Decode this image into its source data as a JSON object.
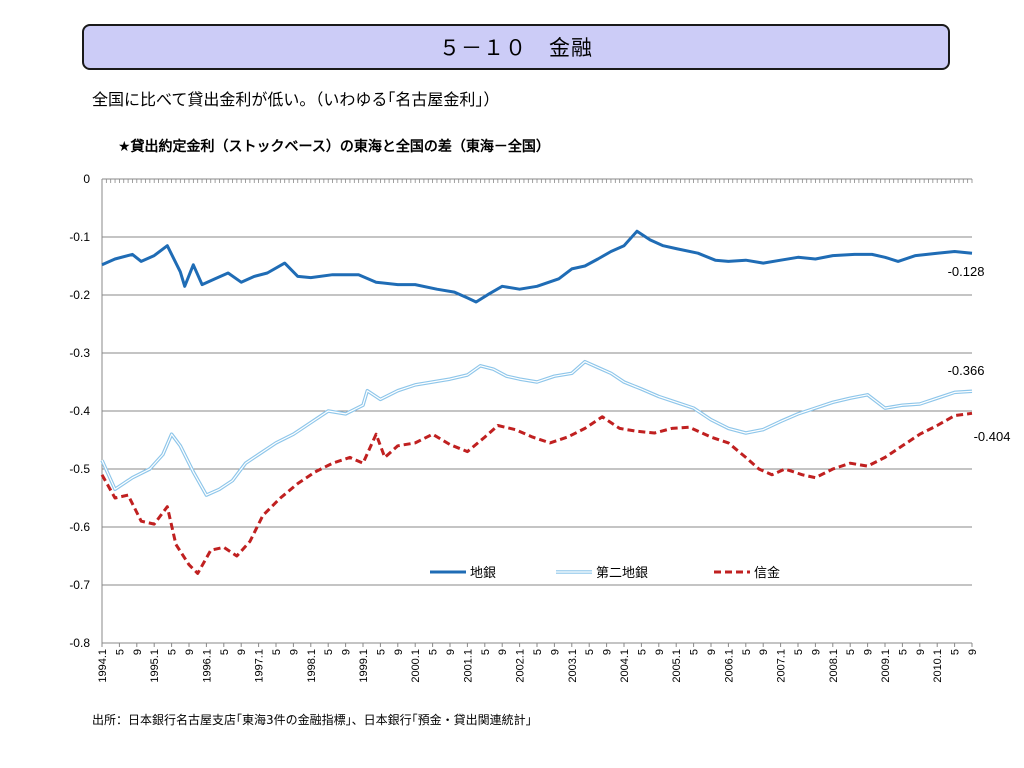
{
  "slide": {
    "title": "５－１０　金融",
    "subtitle": "全国に比べて貸出金利が低い。（いわゆる｢名古屋金利｣）",
    "chart_heading": "★貸出約定金利（ストックベース）の東海と全国の差（東海－全国）",
    "source": "出所：日本銀行名古屋支店｢東海3件の金融指標｣、日本銀行｢預金・貸出関連統計｣"
  },
  "chart_data": {
    "type": "line",
    "ylim": [
      -0.8,
      0
    ],
    "yticks": [
      0,
      -0.1,
      -0.2,
      -0.3,
      -0.4,
      -0.5,
      -0.6,
      -0.7,
      -0.8
    ],
    "ytick_labels": [
      "0",
      "-0.1",
      "-0.2",
      "-0.3",
      "-0.4",
      "-0.5",
      "-0.6",
      "-0.7",
      "-0.8"
    ],
    "xlim": [
      "1994-01",
      "2010-09"
    ],
    "xtick_labels": [
      "1994.1",
      "5",
      "9",
      "1995.1",
      "5",
      "9",
      "1996.1",
      "5",
      "9",
      "1997.1",
      "5",
      "9",
      "1998.1",
      "5",
      "9",
      "1999.1",
      "5",
      "9",
      "2000.1",
      "5",
      "9",
      "2001.1",
      "5",
      "9",
      "2002.1",
      "5",
      "9",
      "2003.1",
      "5",
      "9",
      "2004.1",
      "5",
      "9",
      "2005.1",
      "5",
      "9",
      "2006.1",
      "5",
      "9",
      "2007.1",
      "5",
      "9",
      "2008.1",
      "5",
      "9",
      "2009.1",
      "5",
      "9",
      "2010.1",
      "5",
      "9"
    ],
    "grid": true,
    "legend_position": "bottom-center",
    "series": [
      {
        "name": "地銀",
        "color": "#1f6cb5",
        "style": "solid",
        "points": [
          [
            "1994-01",
            -0.148
          ],
          [
            "1994-04",
            -0.138
          ],
          [
            "1994-08",
            -0.13
          ],
          [
            "1994-10",
            -0.142
          ],
          [
            "1995-01",
            -0.132
          ],
          [
            "1995-04",
            -0.115
          ],
          [
            "1995-07",
            -0.16
          ],
          [
            "1995-08",
            -0.185
          ],
          [
            "1995-10",
            -0.148
          ],
          [
            "1995-12",
            -0.182
          ],
          [
            "1996-03",
            -0.172
          ],
          [
            "1996-06",
            -0.162
          ],
          [
            "1996-09",
            -0.178
          ],
          [
            "1996-12",
            -0.168
          ],
          [
            "1997-03",
            -0.162
          ],
          [
            "1997-07",
            -0.145
          ],
          [
            "1997-10",
            -0.168
          ],
          [
            "1998-01",
            -0.17
          ],
          [
            "1998-06",
            -0.165
          ],
          [
            "1998-12",
            -0.165
          ],
          [
            "1999-04",
            -0.178
          ],
          [
            "1999-09",
            -0.182
          ],
          [
            "2000-01",
            -0.182
          ],
          [
            "2000-06",
            -0.19
          ],
          [
            "2000-10",
            -0.195
          ],
          [
            "2001-01",
            -0.205
          ],
          [
            "2001-03",
            -0.212
          ],
          [
            "2001-06",
            -0.198
          ],
          [
            "2001-09",
            -0.185
          ],
          [
            "2002-01",
            -0.19
          ],
          [
            "2002-05",
            -0.185
          ],
          [
            "2002-10",
            -0.172
          ],
          [
            "2003-01",
            -0.155
          ],
          [
            "2003-04",
            -0.15
          ],
          [
            "2003-07",
            -0.138
          ],
          [
            "2003-10",
            -0.125
          ],
          [
            "2004-01",
            -0.115
          ],
          [
            "2004-04",
            -0.09
          ],
          [
            "2004-07",
            -0.105
          ],
          [
            "2004-10",
            -0.115
          ],
          [
            "2005-01",
            -0.12
          ],
          [
            "2005-06",
            -0.128
          ],
          [
            "2005-10",
            -0.14
          ],
          [
            "2006-01",
            -0.142
          ],
          [
            "2006-05",
            -0.14
          ],
          [
            "2006-09",
            -0.145
          ],
          [
            "2007-01",
            -0.14
          ],
          [
            "2007-05",
            -0.135
          ],
          [
            "2007-09",
            -0.138
          ],
          [
            "2008-01",
            -0.132
          ],
          [
            "2008-06",
            -0.13
          ],
          [
            "2008-10",
            -0.13
          ],
          [
            "2009-01",
            -0.135
          ],
          [
            "2009-04",
            -0.142
          ],
          [
            "2009-08",
            -0.132
          ],
          [
            "2010-01",
            -0.128
          ],
          [
            "2010-05",
            -0.125
          ],
          [
            "2010-09",
            -0.128
          ]
        ],
        "end_label": "-0.128"
      },
      {
        "name": "第二地銀",
        "color": "#8ec6ea",
        "style": "double",
        "points": [
          [
            "1994-01",
            -0.485
          ],
          [
            "1994-04",
            -0.535
          ],
          [
            "1994-08",
            -0.515
          ],
          [
            "1994-12",
            -0.5
          ],
          [
            "1995-03",
            -0.475
          ],
          [
            "1995-05",
            -0.44
          ],
          [
            "1995-07",
            -0.46
          ],
          [
            "1995-10",
            -0.505
          ],
          [
            "1996-01",
            -0.545
          ],
          [
            "1996-04",
            -0.535
          ],
          [
            "1996-07",
            -0.52
          ],
          [
            "1996-10",
            -0.49
          ],
          [
            "1997-01",
            -0.475
          ],
          [
            "1997-05",
            -0.455
          ],
          [
            "1997-09",
            -0.44
          ],
          [
            "1998-01",
            -0.42
          ],
          [
            "1998-05",
            -0.4
          ],
          [
            "1998-09",
            -0.405
          ],
          [
            "1999-01",
            -0.39
          ],
          [
            "1999-02",
            -0.365
          ],
          [
            "1999-05",
            -0.38
          ],
          [
            "1999-09",
            -0.365
          ],
          [
            "2000-01",
            -0.355
          ],
          [
            "2000-05",
            -0.35
          ],
          [
            "2000-09",
            -0.345
          ],
          [
            "2001-01",
            -0.338
          ],
          [
            "2001-04",
            -0.322
          ],
          [
            "2001-07",
            -0.328
          ],
          [
            "2001-10",
            -0.34
          ],
          [
            "2002-01",
            -0.345
          ],
          [
            "2002-05",
            -0.35
          ],
          [
            "2002-09",
            -0.34
          ],
          [
            "2003-01",
            -0.335
          ],
          [
            "2003-04",
            -0.315
          ],
          [
            "2003-07",
            -0.325
          ],
          [
            "2003-10",
            -0.335
          ],
          [
            "2004-01",
            -0.35
          ],
          [
            "2004-05",
            -0.362
          ],
          [
            "2004-09",
            -0.375
          ],
          [
            "2005-01",
            -0.385
          ],
          [
            "2005-05",
            -0.395
          ],
          [
            "2005-09",
            -0.415
          ],
          [
            "2006-01",
            -0.43
          ],
          [
            "2006-05",
            -0.438
          ],
          [
            "2006-09",
            -0.432
          ],
          [
            "2007-01",
            -0.418
          ],
          [
            "2007-05",
            -0.405
          ],
          [
            "2007-09",
            -0.395
          ],
          [
            "2008-01",
            -0.385
          ],
          [
            "2008-05",
            -0.378
          ],
          [
            "2008-09",
            -0.372
          ],
          [
            "2009-01",
            -0.395
          ],
          [
            "2009-05",
            -0.39
          ],
          [
            "2009-09",
            -0.388
          ],
          [
            "2010-01",
            -0.378
          ],
          [
            "2010-05",
            -0.368
          ],
          [
            "2010-09",
            -0.366
          ]
        ],
        "end_label": "-0.366"
      },
      {
        "name": "信金",
        "color": "#c02020",
        "style": "dashed",
        "points": [
          [
            "1994-01",
            -0.51
          ],
          [
            "1994-04",
            -0.55
          ],
          [
            "1994-07",
            -0.545
          ],
          [
            "1994-10",
            -0.59
          ],
          [
            "1995-01",
            -0.595
          ],
          [
            "1995-04",
            -0.565
          ],
          [
            "1995-06",
            -0.63
          ],
          [
            "1995-09",
            -0.665
          ],
          [
            "1995-11",
            -0.68
          ],
          [
            "1996-02",
            -0.64
          ],
          [
            "1996-05",
            -0.635
          ],
          [
            "1996-08",
            -0.65
          ],
          [
            "1996-11",
            -0.625
          ],
          [
            "1997-02",
            -0.58
          ],
          [
            "1997-06",
            -0.55
          ],
          [
            "1997-10",
            -0.525
          ],
          [
            "1998-02",
            -0.505
          ],
          [
            "1998-06",
            -0.49
          ],
          [
            "1998-10",
            -0.48
          ],
          [
            "1999-01",
            -0.49
          ],
          [
            "1999-04",
            -0.44
          ],
          [
            "1999-06",
            -0.48
          ],
          [
            "1999-09",
            -0.46
          ],
          [
            "2000-01",
            -0.455
          ],
          [
            "2000-05",
            -0.44
          ],
          [
            "2000-09",
            -0.458
          ],
          [
            "2001-01",
            -0.47
          ],
          [
            "2001-05",
            -0.445
          ],
          [
            "2001-08",
            -0.425
          ],
          [
            "2001-12",
            -0.432
          ],
          [
            "2002-04",
            -0.445
          ],
          [
            "2002-08",
            -0.455
          ],
          [
            "2002-12",
            -0.445
          ],
          [
            "2003-04",
            -0.43
          ],
          [
            "2003-08",
            -0.41
          ],
          [
            "2003-12",
            -0.43
          ],
          [
            "2004-04",
            -0.435
          ],
          [
            "2004-08",
            -0.438
          ],
          [
            "2004-12",
            -0.43
          ],
          [
            "2005-04",
            -0.428
          ],
          [
            "2005-09",
            -0.445
          ],
          [
            "2006-01",
            -0.455
          ],
          [
            "2006-05",
            -0.48
          ],
          [
            "2006-08",
            -0.5
          ],
          [
            "2006-11",
            -0.51
          ],
          [
            "2007-02",
            -0.5
          ],
          [
            "2007-06",
            -0.51
          ],
          [
            "2007-09",
            -0.515
          ],
          [
            "2008-01",
            -0.5
          ],
          [
            "2008-05",
            -0.49
          ],
          [
            "2008-09",
            -0.495
          ],
          [
            "2009-01",
            -0.48
          ],
          [
            "2009-05",
            -0.46
          ],
          [
            "2009-09",
            -0.44
          ],
          [
            "2010-01",
            -0.425
          ],
          [
            "2010-05",
            -0.408
          ],
          [
            "2010-09",
            -0.404
          ]
        ],
        "end_label": "-0.404"
      }
    ]
  }
}
